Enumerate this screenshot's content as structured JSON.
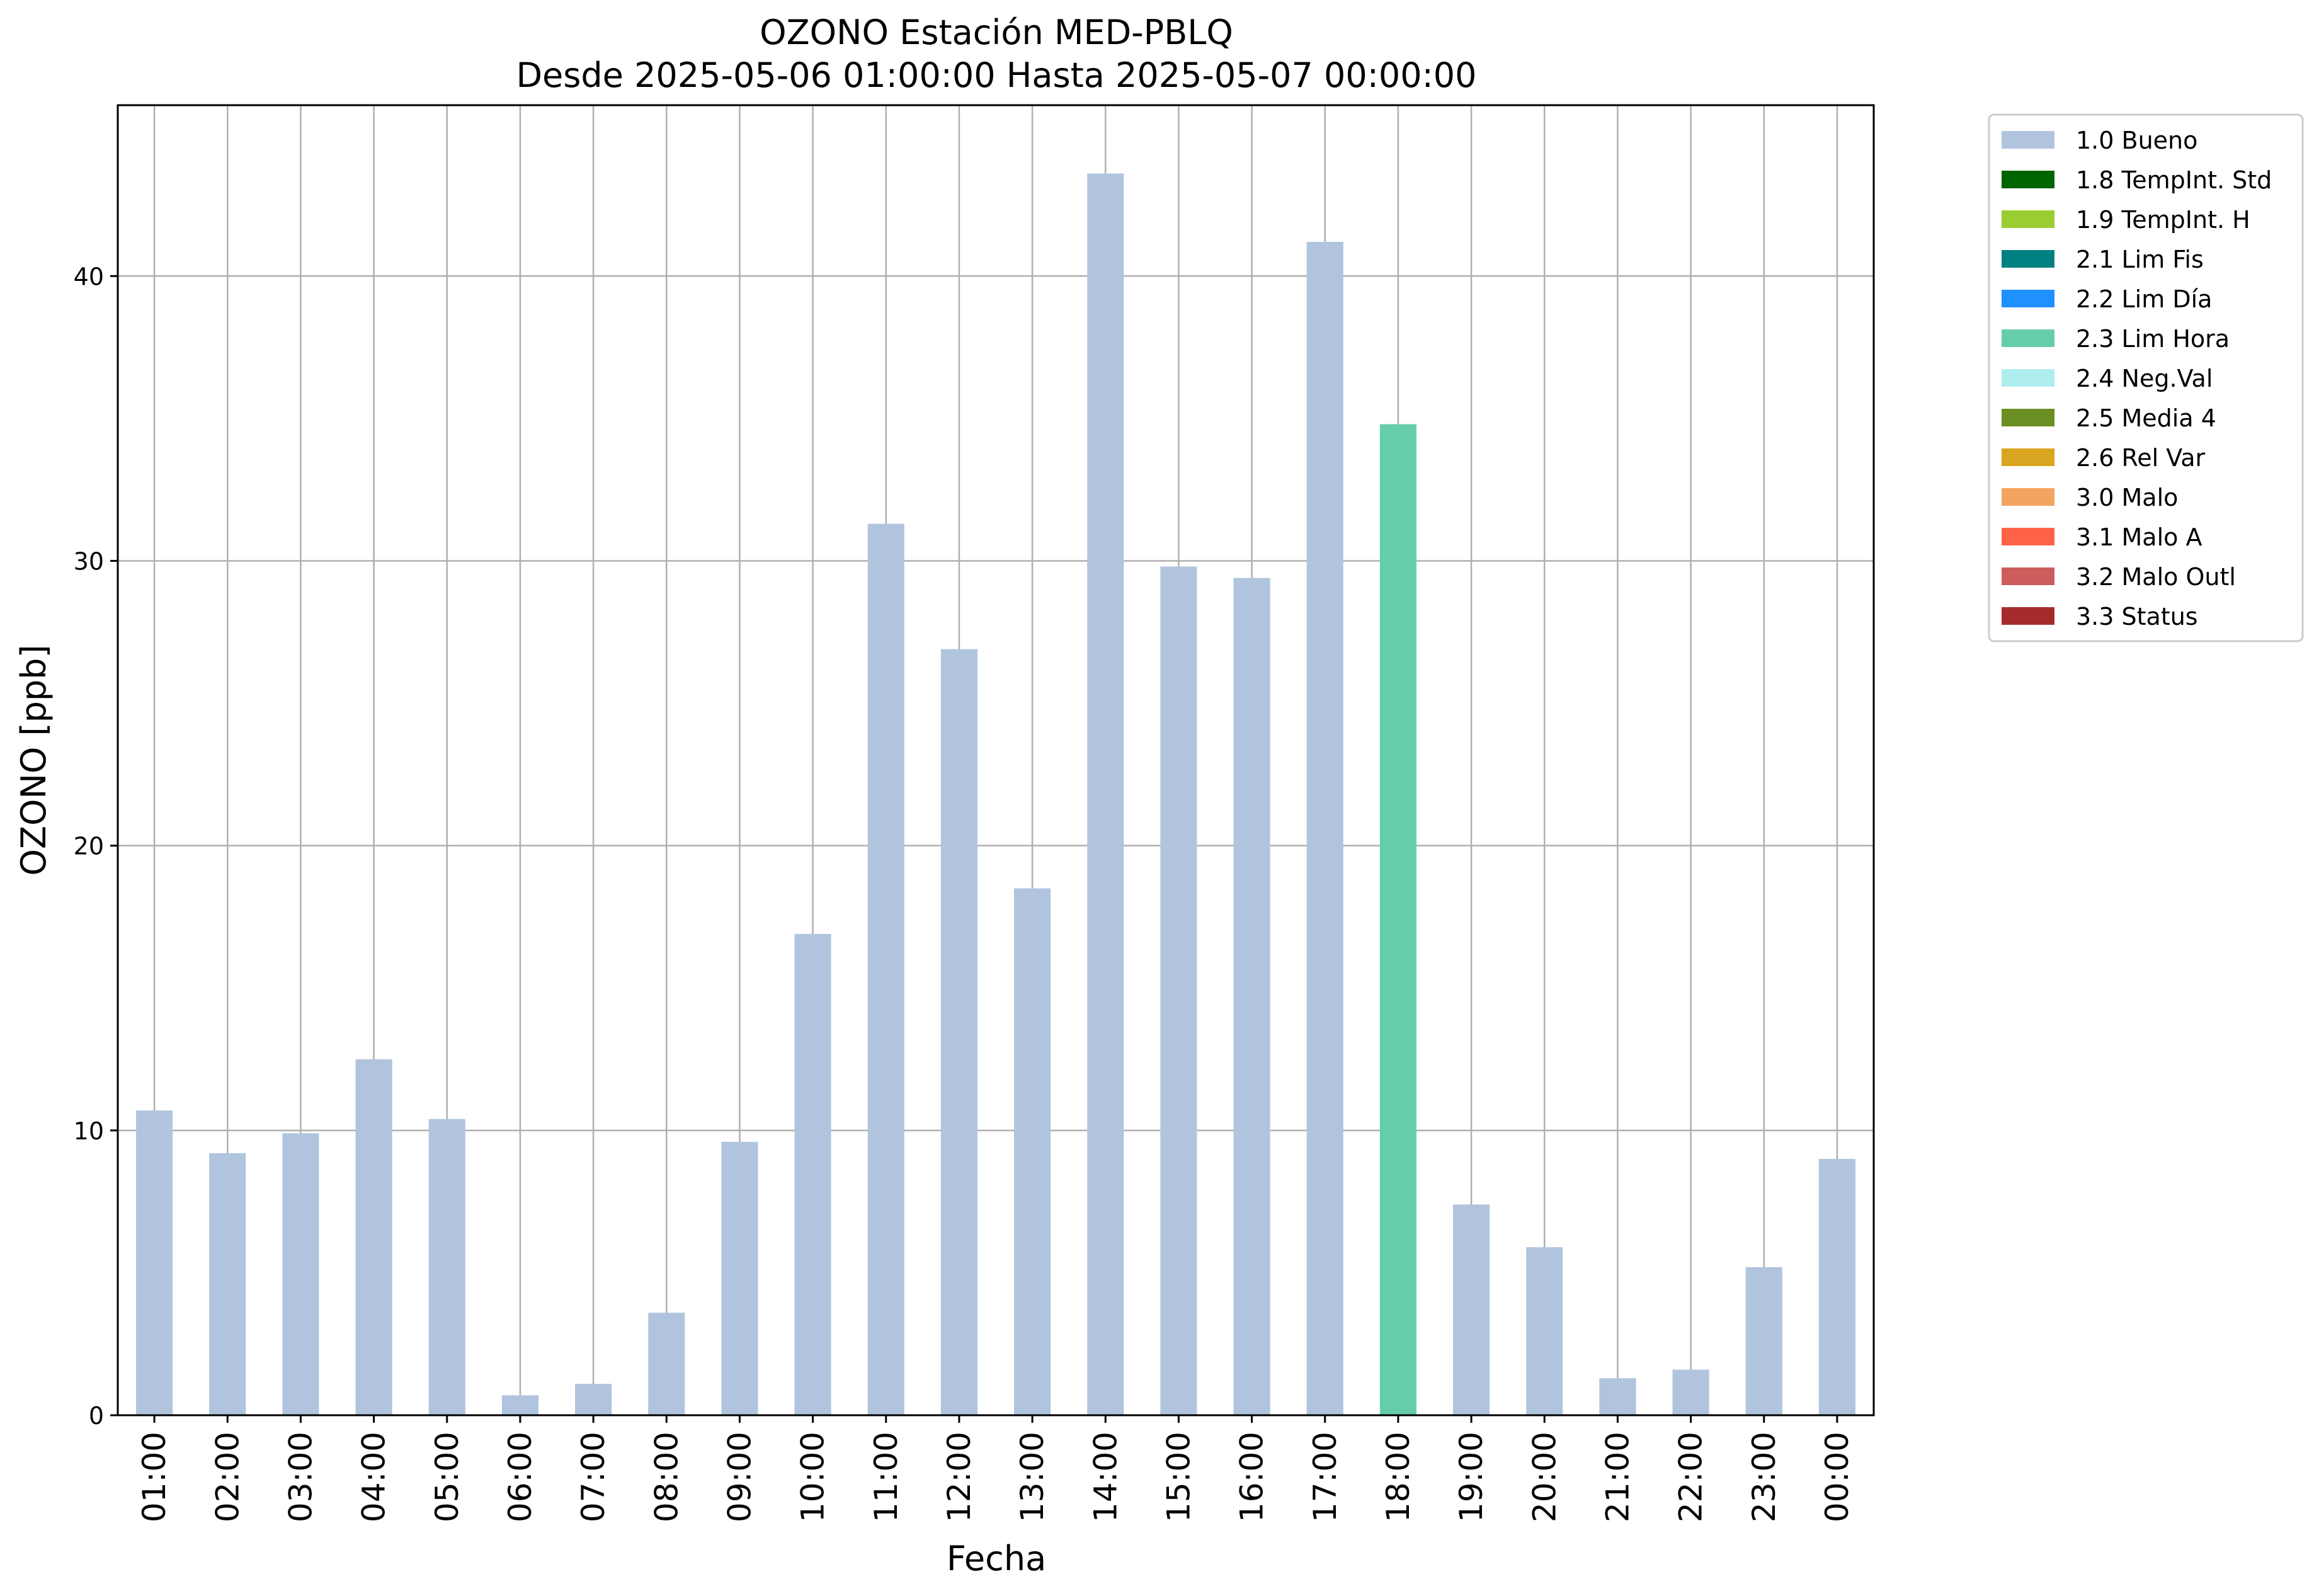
{
  "chart_data": {
    "type": "bar",
    "title": "OZONO Estación MED-PBLQ",
    "subtitle": "Desde 2025-05-06 01:00:00 Hasta 2025-05-07 00:00:00",
    "xlabel": "Fecha",
    "ylabel": "OZONO [ppb]",
    "ylim": [
      0,
      46
    ],
    "yticks": [
      0,
      10,
      20,
      30,
      40
    ],
    "grid": true,
    "legend_position": "outside-top-right",
    "categories": [
      "01:00",
      "02:00",
      "03:00",
      "04:00",
      "05:00",
      "06:00",
      "07:00",
      "08:00",
      "09:00",
      "10:00",
      "11:00",
      "12:00",
      "13:00",
      "14:00",
      "15:00",
      "16:00",
      "17:00",
      "18:00",
      "19:00",
      "20:00",
      "21:00",
      "22:00",
      "23:00",
      "00:00"
    ],
    "values": [
      10.7,
      9.2,
      9.9,
      12.5,
      10.4,
      0.7,
      1.1,
      3.6,
      9.6,
      16.9,
      31.3,
      26.9,
      18.5,
      43.6,
      29.8,
      29.4,
      41.2,
      34.8,
      7.4,
      5.9,
      1.3,
      1.6,
      5.2,
      9.0
    ],
    "bar_flags": [
      "1.0 Bueno",
      "1.0 Bueno",
      "1.0 Bueno",
      "1.0 Bueno",
      "1.0 Bueno",
      "1.0 Bueno",
      "1.0 Bueno",
      "1.0 Bueno",
      "1.0 Bueno",
      "1.0 Bueno",
      "1.0 Bueno",
      "1.0 Bueno",
      "1.0 Bueno",
      "1.0 Bueno",
      "1.0 Bueno",
      "1.0 Bueno",
      "1.0 Bueno",
      "2.3 Lim Hora",
      "1.0 Bueno",
      "1.0 Bueno",
      "1.0 Bueno",
      "1.0 Bueno",
      "1.0 Bueno",
      "1.0 Bueno"
    ],
    "legend": [
      {
        "label": "1.0 Bueno",
        "color": "#b0c4de"
      },
      {
        "label": "1.8 TempInt. Std",
        "color": "#006400"
      },
      {
        "label": "1.9 TempInt. H",
        "color": "#9acd32"
      },
      {
        "label": "2.1 Lim Fis",
        "color": "#008080"
      },
      {
        "label": "2.2 Lim Día",
        "color": "#1e90ff"
      },
      {
        "label": "2.3 Lim Hora",
        "color": "#66cdaa"
      },
      {
        "label": "2.4 Neg.Val",
        "color": "#afeeee"
      },
      {
        "label": "2.5 Media 4",
        "color": "#6b8e23"
      },
      {
        "label": "2.6 Rel Var",
        "color": "#daa520"
      },
      {
        "label": "3.0 Malo",
        "color": "#f4a460"
      },
      {
        "label": "3.1 Malo A",
        "color": "#ff6347"
      },
      {
        "label": "3.2 Malo Outl",
        "color": "#cd5c5c"
      },
      {
        "label": "3.3 Status",
        "color": "#a52a2a"
      }
    ]
  }
}
